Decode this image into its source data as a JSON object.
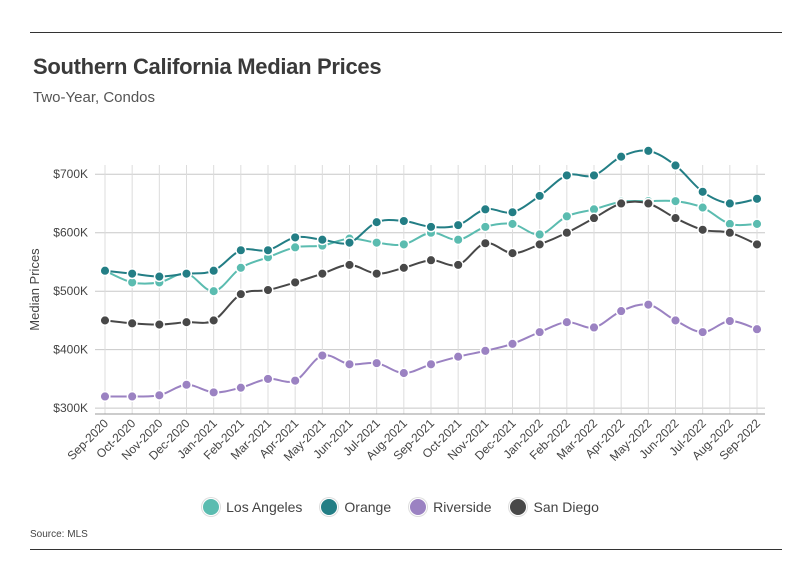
{
  "title": "Southern California Median Prices",
  "subtitle": "Two-Year, Condos",
  "source": "Source:  MLS",
  "chart_data": {
    "type": "line",
    "ylabel": "Median Prices",
    "xlabel": "",
    "ylim": [
      290000,
      750000
    ],
    "yticks": [
      300000,
      400000,
      500000,
      600000,
      700000
    ],
    "ytick_labels": [
      "$300K",
      "$400K",
      "$500K",
      "$600K",
      "$700K"
    ],
    "grid": true,
    "legend_position": "bottom-center",
    "categories": [
      "Sep-2020",
      "Oct-2020",
      "Nov-2020",
      "Dec-2020",
      "Jan-2021",
      "Feb-2021",
      "Mar-2021",
      "Apr-2021",
      "May-2021",
      "Jun-2021",
      "Jul-2021",
      "Aug-2021",
      "Sep-2021",
      "Oct-2021",
      "Nov-2021",
      "Dec-2021",
      "Jan-2022",
      "Feb-2022",
      "Mar-2022",
      "Apr-2022",
      "May-2022",
      "Jun-2022",
      "Jul-2022",
      "Aug-2022",
      "Sep-2022"
    ],
    "series": [
      {
        "name": "Los Angeles",
        "color": "#5bbcb0",
        "values": [
          535000,
          515000,
          515000,
          530000,
          500000,
          540000,
          558000,
          575000,
          578000,
          590000,
          583000,
          580000,
          600000,
          588000,
          610000,
          615000,
          597000,
          628000,
          640000,
          653000,
          654000,
          654000,
          643000,
          615000,
          615000
        ]
      },
      {
        "name": "Orange",
        "color": "#237e85",
        "values": [
          535000,
          530000,
          525000,
          530000,
          535000,
          570000,
          570000,
          592000,
          588000,
          583000,
          618000,
          620000,
          610000,
          613000,
          640000,
          635000,
          663000,
          698000,
          698000,
          730000,
          740000,
          715000,
          670000,
          650000,
          658000
        ]
      },
      {
        "name": "Riverside",
        "color": "#9b82c2",
        "values": [
          320000,
          320000,
          322000,
          340000,
          327000,
          335000,
          350000,
          347000,
          390000,
          375000,
          377000,
          360000,
          375000,
          388000,
          398000,
          410000,
          430000,
          447000,
          438000,
          466000,
          477000,
          450000,
          430000,
          449000,
          435000
        ]
      },
      {
        "name": "San Diego",
        "color": "#484848",
        "values": [
          450000,
          445000,
          443000,
          447000,
          450000,
          495000,
          502000,
          515000,
          530000,
          545000,
          530000,
          540000,
          553000,
          545000,
          582000,
          565000,
          580000,
          600000,
          625000,
          650000,
          650000,
          625000,
          605000,
          600000,
          580000
        ]
      }
    ]
  }
}
